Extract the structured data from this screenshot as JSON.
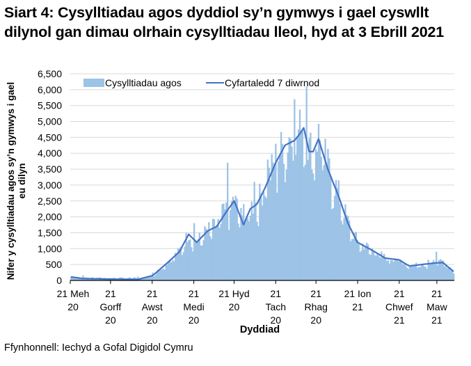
{
  "title": "Siart 4: Cysylltiadau agos dyddiol sy’n gymwys i gael cyswllt dilynol gan dimau olrhain cysylltiadau lleol, hyd at 3 Ebrill 2021",
  "source": "Ffynhonnell: Iechyd a Gofal Digidol Cymru",
  "colors": {
    "bars": "#9dc3e6",
    "line": "#4472c4",
    "grid": "#d9d9d9",
    "axis": "#000000"
  },
  "chart_data": {
    "type": "bar",
    "title": "Siart 4: Cysylltiadau agos dyddiol sy’n gymwys i gael cyswllt dilynol gan dimau olrhain cysylltiadau lleol, hyd at 3 Ebrill 2021",
    "xlabel": "Dyddiad",
    "ylabel": "Nifer y cysylltiadau agos sy’n gymwys i gael eu dilyn",
    "ylim": [
      0,
      6500
    ],
    "yticks": [
      0,
      500,
      1000,
      1500,
      2000,
      2500,
      3000,
      3500,
      4000,
      4500,
      5000,
      5500,
      6000,
      6500
    ],
    "ytick_labels": [
      "0",
      "500",
      "1,000",
      "1,500",
      "2,000",
      "2,500",
      "3,000",
      "3,500",
      "4,000",
      "4,500",
      "5,000",
      "5,500",
      "6,000",
      "6,500"
    ],
    "xtick_labels": [
      [
        "21 Meh",
        "20"
      ],
      [
        "21",
        "Gorff",
        "20"
      ],
      [
        "21",
        "Awst",
        "20"
      ],
      [
        "21",
        "Medi",
        "20"
      ],
      [
        "21 Hyd",
        "20"
      ],
      [
        "21",
        "Tach",
        "20"
      ],
      [
        "21",
        "Rhag",
        "20"
      ],
      [
        "21 Ion",
        "21"
      ],
      [
        "21",
        "Chwef",
        "21"
      ],
      [
        "21",
        "Maw",
        "21"
      ]
    ],
    "grid": true,
    "legend_position": "top",
    "legend": [
      "Cysylltiadau agos",
      "Cyfartaledd 7 diwrnod"
    ],
    "series": [
      {
        "name": "Cysylltiadau agos",
        "type": "bar",
        "note": "daily values (approximate key points read from chart)",
        "x": [
          "2020-06-21",
          "2020-06-30",
          "2020-07-21",
          "2020-08-10",
          "2020-08-21",
          "2020-09-05",
          "2020-09-15",
          "2020-09-21",
          "2020-09-29",
          "2020-10-05",
          "2020-10-12",
          "2020-10-16",
          "2020-10-21",
          "2020-10-28",
          "2020-11-05",
          "2020-11-15",
          "2020-11-21",
          "2020-12-01",
          "2020-12-05",
          "2020-12-10",
          "2020-12-14",
          "2020-12-17",
          "2020-12-21",
          "2020-12-28",
          "2021-01-05",
          "2021-01-12",
          "2021-01-21",
          "2021-02-01",
          "2021-02-10",
          "2021-02-21",
          "2021-03-06",
          "2021-03-15",
          "2021-03-21",
          "2021-03-28",
          "2021-04-03"
        ],
        "values": [
          120,
          160,
          70,
          120,
          250,
          650,
          1100,
          1800,
          1550,
          1900,
          2400,
          3700,
          2300,
          2400,
          3100,
          3800,
          4300,
          4500,
          5700,
          4700,
          6100,
          4300,
          3500,
          3200,
          1900,
          1100,
          750,
          700,
          650,
          600,
          560,
          650,
          900,
          500,
          170
        ]
      },
      {
        "name": "Cyfartaledd 7 diwrnod",
        "type": "line",
        "x": [
          "2020-06-21",
          "2020-06-30",
          "2020-07-21",
          "2020-08-10",
          "2020-08-21",
          "2020-09-01",
          "2020-09-10",
          "2020-09-17",
          "2020-09-23",
          "2020-10-01",
          "2020-10-08",
          "2020-10-15",
          "2020-10-21",
          "2020-10-28",
          "2020-11-02",
          "2020-11-07",
          "2020-11-13",
          "2020-11-21",
          "2020-11-28",
          "2020-12-05",
          "2020-12-08",
          "2020-12-12",
          "2020-12-16",
          "2020-12-19",
          "2020-12-23",
          "2020-12-30",
          "2021-01-07",
          "2021-01-14",
          "2021-01-21",
          "2021-02-01",
          "2021-02-11",
          "2021-02-21",
          "2021-03-01",
          "2021-03-10",
          "2021-03-21",
          "2021-03-26",
          "2021-04-03"
        ],
        "values": [
          110,
          60,
          40,
          30,
          150,
          550,
          900,
          1450,
          1200,
          1550,
          1700,
          2150,
          2500,
          1750,
          2250,
          2400,
          2900,
          3700,
          4250,
          4400,
          4550,
          4800,
          4050,
          4050,
          4450,
          3500,
          2650,
          1800,
          1200,
          950,
          700,
          650,
          450,
          500,
          550,
          560,
          280
        ]
      }
    ]
  },
  "legend": {
    "bars_label": "Cysylltiadau agos",
    "line_label": "Cyfartaledd 7 diwrnod"
  }
}
